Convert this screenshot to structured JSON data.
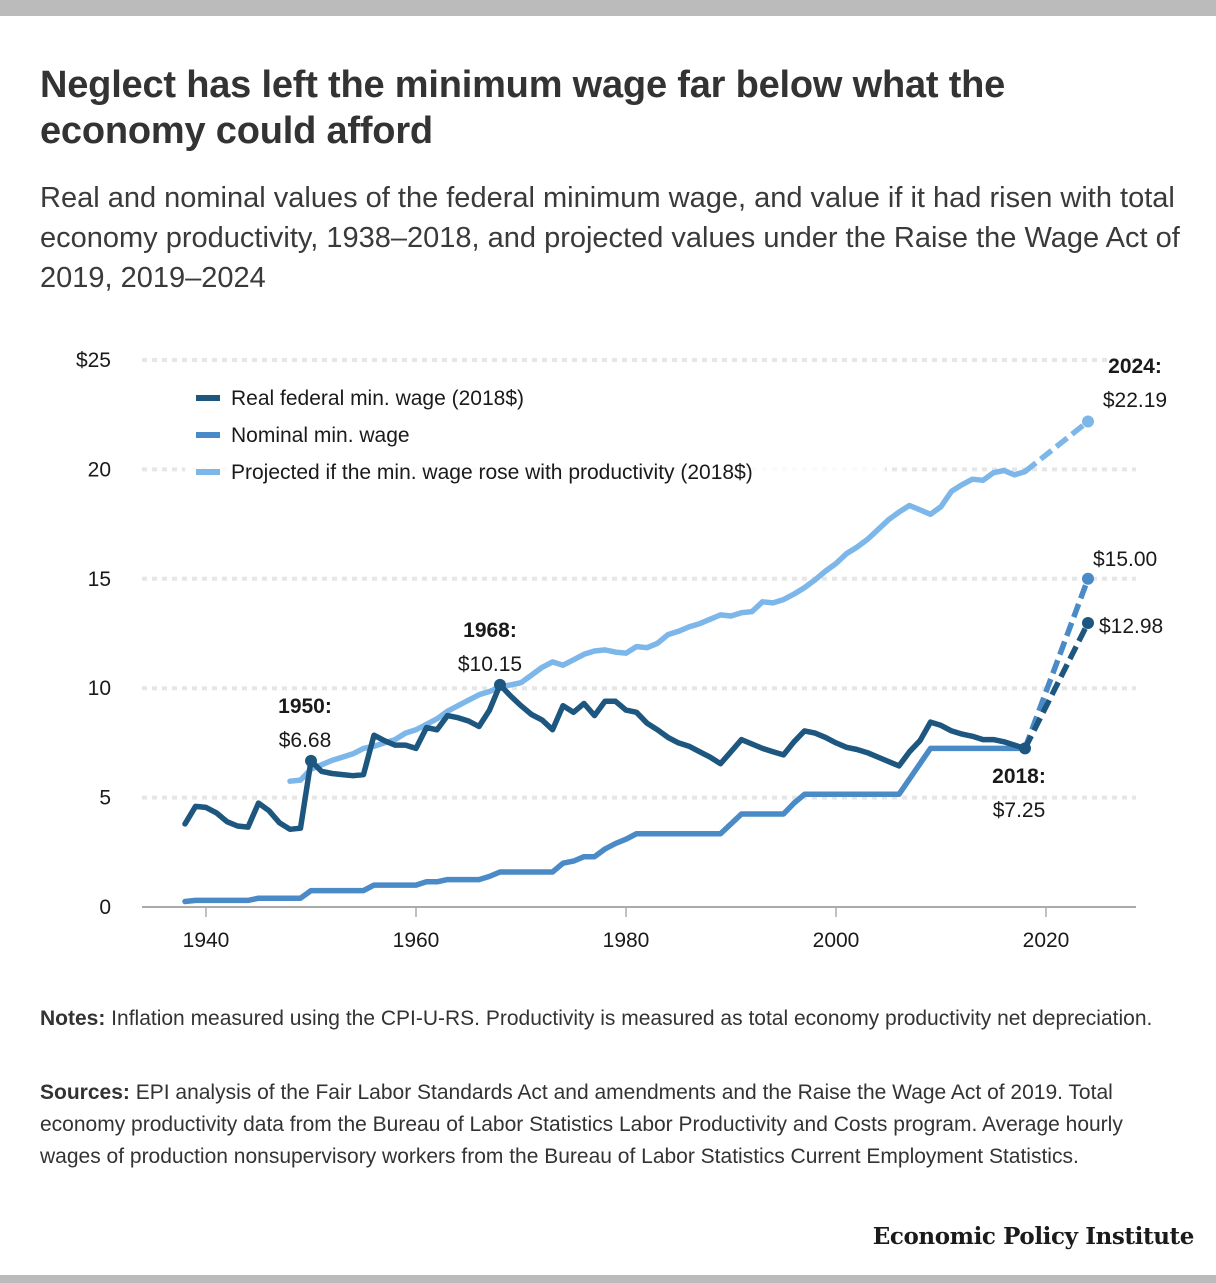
{
  "title": "Neglect has left the minimum wage far below what the economy could afford",
  "subtitle": "Real and nominal values of the federal minimum wage, and value if it had risen with total economy productivity, 1938–2018, and projected values under the Raise the Wage Act of 2019, 2019–2024",
  "notes": {
    "label": "Notes:",
    "text": " Inflation measured using the CPI-U-RS. Productivity is measured as total economy productivity net depreciation."
  },
  "sources": {
    "label": "Sources:",
    "text": " EPI analysis of the Fair Labor Standards Act and amendments and the Raise the Wage Act of 2019. Total economy productivity data from the Bureau of Labor Statistics Labor Productivity and Costs program. Average hourly wages of production nonsupervisory workers from the Bureau of Labor Statistics Current Employment Statistics."
  },
  "logo": "Economic Policy Institute",
  "colors": {
    "real": "#1d5780",
    "nominal": "#4a8bc7",
    "productivity": "#7db7ea",
    "grid": "#e6e6e6",
    "axis": "#aaaaaa",
    "bars": "#bbbbbb"
  },
  "chart_data": {
    "type": "line",
    "xlabel": "",
    "ylabel": "",
    "xlim": [
      1934,
      2028
    ],
    "ylim": [
      0,
      25
    ],
    "grid": true,
    "legend_position": "top-left",
    "x_ticks": [
      1940,
      1960,
      1980,
      2000,
      2020
    ],
    "x_tick_labels": [
      "1940",
      "1960",
      "1980",
      "2000",
      "2020"
    ],
    "y_ticks": [
      0,
      5,
      10,
      15,
      20,
      25
    ],
    "y_tick_labels": [
      "0",
      "5",
      "10",
      "15",
      "20",
      "$25"
    ],
    "series": [
      {
        "name": "Real federal min. wage (2018$)",
        "key": "real",
        "x": [
          1938,
          1939,
          1940,
          1941,
          1942,
          1943,
          1944,
          1945,
          1946,
          1947,
          1948,
          1949,
          1950,
          1951,
          1952,
          1953,
          1954,
          1955,
          1956,
          1957,
          1958,
          1959,
          1960,
          1961,
          1962,
          1963,
          1964,
          1965,
          1966,
          1967,
          1968,
          1969,
          1970,
          1971,
          1972,
          1973,
          1974,
          1975,
          1976,
          1977,
          1978,
          1979,
          1980,
          1981,
          1982,
          1983,
          1984,
          1985,
          1986,
          1987,
          1988,
          1989,
          1990,
          1991,
          1992,
          1993,
          1994,
          1995,
          1996,
          1997,
          1998,
          1999,
          2000,
          2001,
          2002,
          2003,
          2004,
          2005,
          2006,
          2007,
          2008,
          2009,
          2010,
          2011,
          2012,
          2013,
          2014,
          2015,
          2016,
          2017,
          2018
        ],
        "values": [
          3.8,
          4.6,
          4.55,
          4.3,
          3.9,
          3.7,
          3.65,
          4.75,
          4.4,
          3.85,
          3.55,
          3.6,
          6.68,
          6.2,
          6.1,
          6.05,
          6.0,
          6.05,
          7.85,
          7.6,
          7.4,
          7.4,
          7.25,
          8.2,
          8.1,
          8.75,
          8.65,
          8.5,
          8.25,
          9.0,
          10.15,
          9.65,
          9.2,
          8.8,
          8.55,
          8.1,
          9.2,
          8.9,
          9.3,
          8.75,
          9.4,
          9.4,
          9.0,
          8.9,
          8.4,
          8.1,
          7.75,
          7.5,
          7.35,
          7.1,
          6.85,
          6.55,
          7.1,
          7.65,
          7.45,
          7.25,
          7.1,
          6.95,
          7.55,
          8.05,
          7.95,
          7.75,
          7.5,
          7.3,
          7.2,
          7.05,
          6.85,
          6.65,
          6.45,
          7.1,
          7.6,
          8.45,
          8.3,
          8.05,
          7.9,
          7.8,
          7.65,
          7.65,
          7.55,
          7.4,
          7.25
        ],
        "projected": {
          "x": [
            2018,
            2024
          ],
          "values": [
            7.25,
            12.98
          ]
        }
      },
      {
        "name": "Nominal min. wage",
        "key": "nominal",
        "x": [
          1938,
          1939,
          1940,
          1941,
          1942,
          1943,
          1944,
          1945,
          1946,
          1947,
          1948,
          1949,
          1950,
          1951,
          1952,
          1953,
          1954,
          1955,
          1956,
          1957,
          1958,
          1959,
          1960,
          1961,
          1962,
          1963,
          1964,
          1965,
          1966,
          1967,
          1968,
          1969,
          1970,
          1971,
          1972,
          1973,
          1974,
          1975,
          1976,
          1977,
          1978,
          1979,
          1980,
          1981,
          1982,
          1983,
          1984,
          1985,
          1986,
          1987,
          1988,
          1989,
          1990,
          1991,
          1992,
          1993,
          1994,
          1995,
          1996,
          1997,
          1998,
          1999,
          2000,
          2001,
          2002,
          2003,
          2004,
          2005,
          2006,
          2007,
          2008,
          2009,
          2010,
          2011,
          2012,
          2013,
          2014,
          2015,
          2016,
          2017,
          2018
        ],
        "values": [
          0.25,
          0.3,
          0.3,
          0.3,
          0.3,
          0.3,
          0.3,
          0.4,
          0.4,
          0.4,
          0.4,
          0.4,
          0.75,
          0.75,
          0.75,
          0.75,
          0.75,
          0.75,
          1.0,
          1.0,
          1.0,
          1.0,
          1.0,
          1.15,
          1.15,
          1.25,
          1.25,
          1.25,
          1.25,
          1.4,
          1.6,
          1.6,
          1.6,
          1.6,
          1.6,
          1.6,
          2.0,
          2.1,
          2.3,
          2.3,
          2.65,
          2.9,
          3.1,
          3.35,
          3.35,
          3.35,
          3.35,
          3.35,
          3.35,
          3.35,
          3.35,
          3.35,
          3.8,
          4.25,
          4.25,
          4.25,
          4.25,
          4.25,
          4.75,
          5.15,
          5.15,
          5.15,
          5.15,
          5.15,
          5.15,
          5.15,
          5.15,
          5.15,
          5.15,
          5.85,
          6.55,
          7.25,
          7.25,
          7.25,
          7.25,
          7.25,
          7.25,
          7.25,
          7.25,
          7.25,
          7.25
        ],
        "projected": {
          "x": [
            2018,
            2024
          ],
          "values": [
            7.25,
            15.0
          ]
        }
      },
      {
        "name": "Projected if the min. wage rose with productivity (2018$)",
        "key": "productivity",
        "x": [
          1948,
          1949,
          1950,
          1951,
          1952,
          1953,
          1954,
          1955,
          1956,
          1957,
          1958,
          1959,
          1960,
          1961,
          1962,
          1963,
          1964,
          1965,
          1966,
          1967,
          1968,
          1969,
          1970,
          1971,
          1972,
          1973,
          1974,
          1975,
          1976,
          1977,
          1978,
          1979,
          1980,
          1981,
          1982,
          1983,
          1984,
          1985,
          1986,
          1987,
          1988,
          1989,
          1990,
          1991,
          1992,
          1993,
          1994,
          1995,
          1996,
          1997,
          1998,
          1999,
          2000,
          2001,
          2002,
          2003,
          2004,
          2005,
          2006,
          2007,
          2008,
          2009,
          2010,
          2011,
          2012,
          2013,
          2014,
          2015,
          2016,
          2017,
          2018
        ],
        "values": [
          5.75,
          5.8,
          6.3,
          6.5,
          6.7,
          6.85,
          7.0,
          7.25,
          7.35,
          7.5,
          7.65,
          7.95,
          8.1,
          8.35,
          8.6,
          8.95,
          9.2,
          9.45,
          9.7,
          9.85,
          10.05,
          10.15,
          10.25,
          10.6,
          10.95,
          11.2,
          11.05,
          11.3,
          11.55,
          11.7,
          11.75,
          11.65,
          11.6,
          11.9,
          11.85,
          12.05,
          12.45,
          12.6,
          12.8,
          12.95,
          13.15,
          13.35,
          13.3,
          13.45,
          13.5,
          13.95,
          13.9,
          14.05,
          14.3,
          14.6,
          14.95,
          15.35,
          15.7,
          16.15,
          16.45,
          16.8,
          17.25,
          17.7,
          18.05,
          18.35,
          18.15,
          17.95,
          18.3,
          19.0,
          19.3,
          19.55,
          19.5,
          19.85,
          19.95,
          19.75,
          19.9
        ],
        "projected": {
          "x": [
            2018,
            2024
          ],
          "values": [
            19.9,
            22.19
          ]
        }
      }
    ],
    "annotations": [
      {
        "year_label": "1950",
        "value_label": "$6.68",
        "x": 1950,
        "y": 6.68,
        "series": "real",
        "dot": true
      },
      {
        "year_label": "1968",
        "value_label": "$10.15",
        "x": 1968,
        "y": 10.15,
        "series": "real",
        "dot": true
      },
      {
        "year_label": "2018",
        "value_label": "$7.25",
        "x": 2018,
        "y": 7.25,
        "series": "real",
        "dot": true
      },
      {
        "year_label": "2024",
        "value_label": "$22.19",
        "x": 2024,
        "y": 22.19,
        "series": "productivity",
        "dot": true
      },
      {
        "year_label": "",
        "value_label": "$15.00",
        "x": 2024,
        "y": 15.0,
        "series": "nominal",
        "dot": true
      },
      {
        "year_label": "",
        "value_label": "$12.98",
        "x": 2024,
        "y": 12.98,
        "series": "real",
        "dot": true
      }
    ]
  }
}
